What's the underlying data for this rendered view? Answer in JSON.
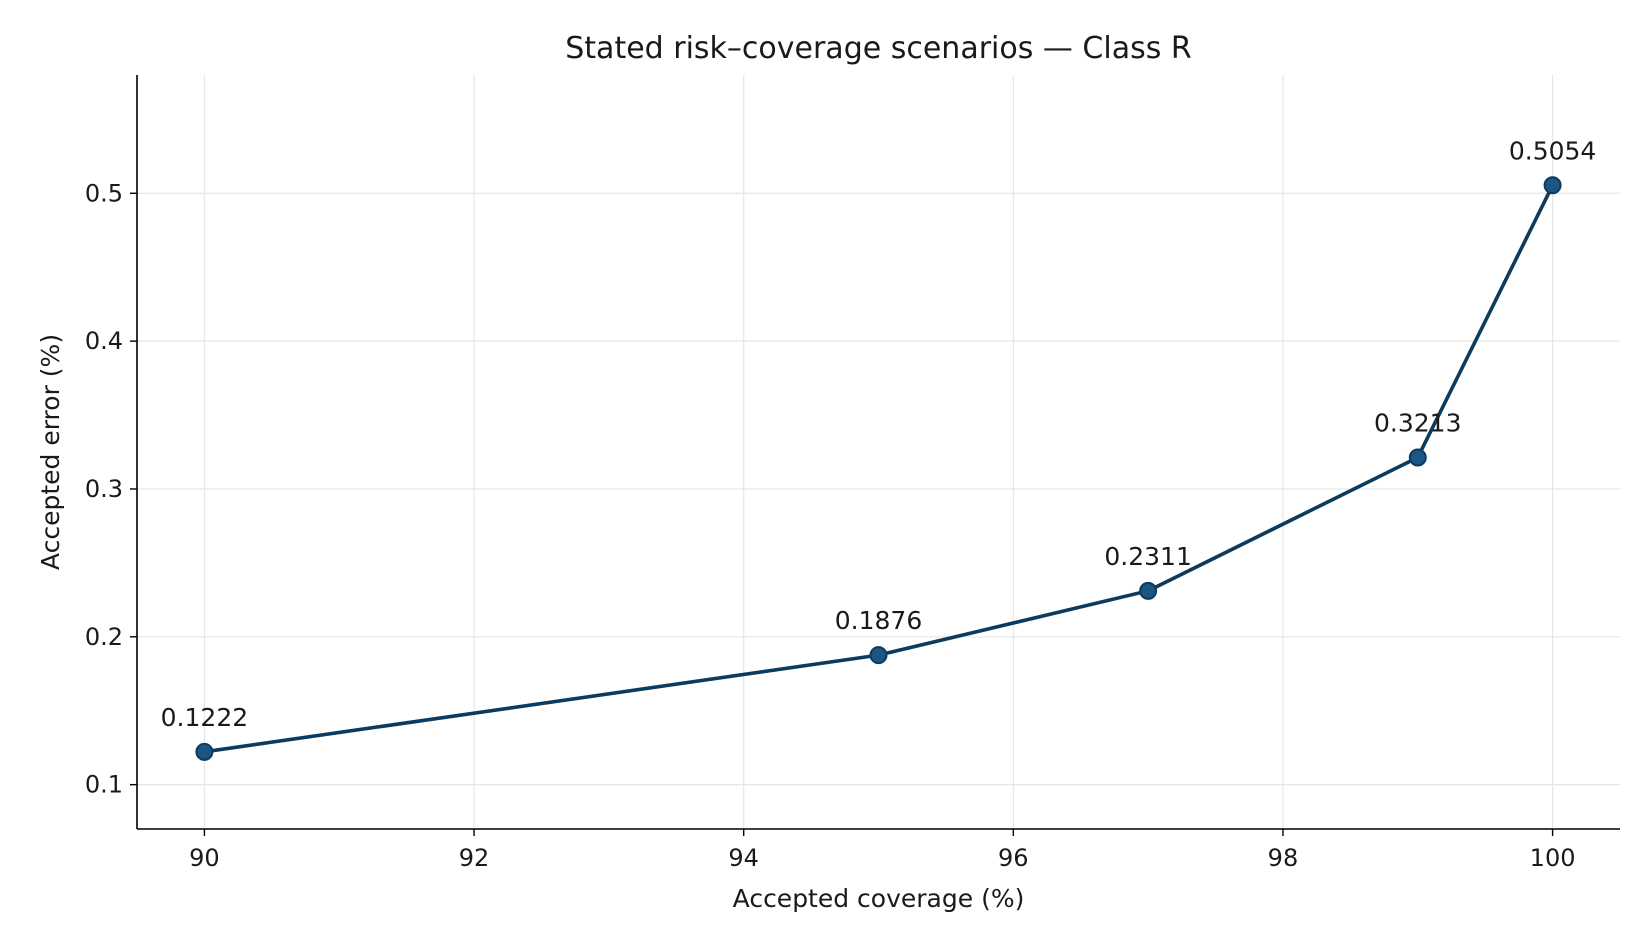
{
  "chart_data": {
    "type": "line",
    "title": "Stated risk–coverage scenarios — Class R",
    "xlabel": "Accepted coverage (%)",
    "ylabel": "Accepted error (%)",
    "xlim": [
      89.5,
      100.5
    ],
    "ylim": [
      0.07,
      0.58
    ],
    "xticks": [
      90,
      92,
      94,
      96,
      98,
      100
    ],
    "yticks": [
      0.1,
      0.2,
      0.3,
      0.4,
      0.5
    ],
    "xtick_labels": [
      "90",
      "92",
      "94",
      "96",
      "98",
      "100"
    ],
    "ytick_labels": [
      "0.1",
      "0.2",
      "0.3",
      "0.4",
      "0.5"
    ],
    "grid": true,
    "legend": "none",
    "series": [
      {
        "x": [
          90,
          95,
          97,
          99,
          100
        ],
        "y": [
          0.1222,
          0.1876,
          0.2311,
          0.3213,
          0.5054
        ],
        "point_labels": [
          "0.1222",
          "0.1876",
          "0.2311",
          "0.3213",
          "0.5054"
        ],
        "color": "#0d3b5e",
        "marker_color": "#1b5584"
      }
    ]
  }
}
